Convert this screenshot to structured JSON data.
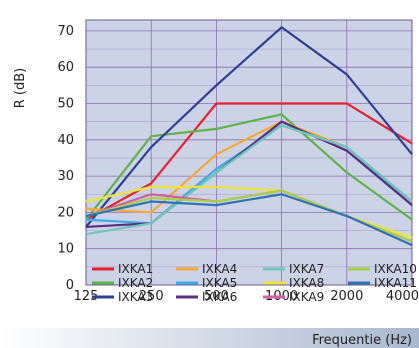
{
  "chart_data": {
    "type": "line",
    "xlabel": "Frequentie (Hz)",
    "ylabel": "R (dB)",
    "x_ticks": [
      "125",
      "250",
      "500",
      "1000",
      "2000",
      "4000"
    ],
    "y_ticks": [
      0,
      10,
      20,
      30,
      40,
      50,
      60,
      70
    ],
    "ylim": [
      0,
      73
    ],
    "grid": true,
    "legend_placement": "bottom inside plot",
    "plot_background": "#ccd3e6",
    "grid_color": "#8c6fb0",
    "series": [
      {
        "name": "IXKA1",
        "color": "#e8212f",
        "values": [
          18,
          28,
          50,
          50,
          50,
          39
        ]
      },
      {
        "name": "IXKA2",
        "color": "#5db447",
        "values": [
          18,
          41,
          43,
          47,
          31,
          18
        ]
      },
      {
        "name": "IXKA3",
        "color": "#2e3f96",
        "values": [
          16,
          38,
          55,
          71,
          58,
          36
        ]
      },
      {
        "name": "IXKA4",
        "color": "#f7a733",
        "values": [
          21,
          20,
          36,
          45,
          38,
          23
        ]
      },
      {
        "name": "IXKA5",
        "color": "#3daee9",
        "values": [
          18,
          17,
          32,
          44,
          38,
          22
        ]
      },
      {
        "name": "IXKA6",
        "color": "#5b2d82",
        "values": [
          16,
          17,
          31,
          45,
          37,
          22
        ]
      },
      {
        "name": "IXKA7",
        "color": "#6ec7b8",
        "values": [
          14,
          17,
          31,
          44,
          38,
          23
        ]
      },
      {
        "name": "IXKA8",
        "color": "#eee33a",
        "values": [
          23,
          27,
          27,
          26,
          19,
          13
        ]
      },
      {
        "name": "IXKA9",
        "color": "#d15fa6",
        "values": [
          19,
          25,
          23,
          26,
          19,
          12
        ]
      },
      {
        "name": "IXKA10",
        "color": "#a8cf45",
        "values": [
          19,
          24,
          23,
          26,
          19,
          12
        ]
      },
      {
        "name": "IXKA11",
        "color": "#2f73b7",
        "values": [
          19,
          23,
          22,
          25,
          19,
          11
        ]
      }
    ]
  }
}
